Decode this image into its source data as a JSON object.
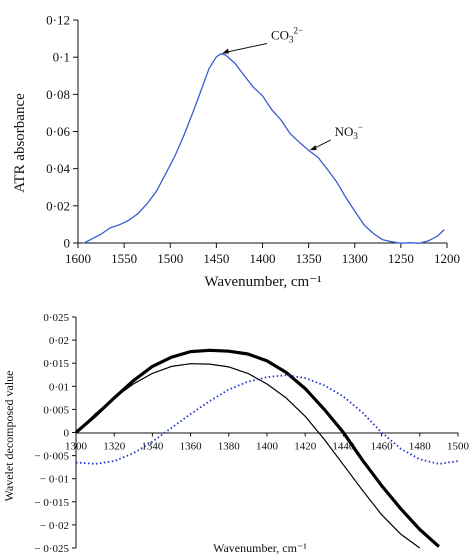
{
  "chart_data": [
    {
      "type": "line",
      "xlabel": "Wavenumber, cm⁻¹",
      "ylabel": "ATR absorbance",
      "xlim": [
        1600,
        1200
      ],
      "ylim": [
        0,
        0.12
      ],
      "x_reversed": true,
      "xticks": [
        1600,
        1550,
        1500,
        1450,
        1400,
        1350,
        1300,
        1250,
        1200
      ],
      "xtick_labels": [
        "1600",
        "1550",
        "1500",
        "1450",
        "1400",
        "1350",
        "1300",
        "1250",
        "1200"
      ],
      "yticks": [
        0,
        0.02,
        0.04,
        0.06,
        0.08,
        0.1,
        0.12
      ],
      "ytick_labels": [
        "0",
        "0·02",
        "0·04",
        "0·06",
        "0·08",
        "0·1",
        "0·12"
      ],
      "series": [
        {
          "color": "#3a5bd0",
          "x": [
            1594,
            1585,
            1575,
            1565,
            1555,
            1545,
            1535,
            1525,
            1515,
            1505,
            1495,
            1485,
            1475,
            1465,
            1458,
            1450,
            1445,
            1440,
            1430,
            1420,
            1410,
            1400,
            1390,
            1380,
            1370,
            1360,
            1350,
            1340,
            1330,
            1320,
            1310,
            1300,
            1290,
            1280,
            1270,
            1260,
            1250,
            1240,
            1230,
            1220,
            1210,
            1203
          ],
          "y": [
            0,
            0.002,
            0.005,
            0.008,
            0.01,
            0.012,
            0.016,
            0.021,
            0.028,
            0.037,
            0.047,
            0.058,
            0.071,
            0.084,
            0.094,
            0.1,
            0.102,
            0.101,
            0.097,
            0.09,
            0.084,
            0.079,
            0.072,
            0.066,
            0.059,
            0.054,
            0.05,
            0.046,
            0.04,
            0.033,
            0.025,
            0.017,
            0.01,
            0.005,
            0.002,
            0.0005,
            0,
            0,
            0,
            0.001,
            0.004,
            0.007
          ]
        }
      ],
      "annotations": [
        {
          "label_main": "CO",
          "label_sub": "3",
          "label_sup": "2−",
          "x": 1445,
          "y": 0.102
        },
        {
          "label_main": "NO",
          "label_sub": "3",
          "label_sup": "−",
          "x": 1350,
          "y": 0.05
        }
      ]
    },
    {
      "type": "line",
      "xlabel": "Wavenumber, cm⁻¹",
      "ylabel": "Wavelet decomposed value",
      "xlim": [
        1300,
        1500
      ],
      "ylim": [
        -0.025,
        0.025
      ],
      "xticks": [
        1300,
        1320,
        1340,
        1360,
        1380,
        1400,
        1420,
        1440,
        1460,
        1480,
        1500
      ],
      "xtick_labels": [
        "1300",
        "1320",
        "1340",
        "1360",
        "1380",
        "1400",
        "1420",
        "1440",
        "1460",
        "1480",
        "1500"
      ],
      "yticks": [
        -0.025,
        -0.02,
        -0.015,
        -0.01,
        -0.005,
        0,
        0.005,
        0.01,
        0.015,
        0.02,
        0.025
      ],
      "ytick_labels": [
        "− 0·025",
        "− 0·02",
        "− 0·015",
        "− 0·01",
        "− 0·005",
        "0",
        "0·005",
        "0·01",
        "0·015",
        "0·02",
        "0·025"
      ],
      "series": [
        {
          "color": "#000000",
          "style": "thick",
          "x": [
            1300,
            1310,
            1320,
            1330,
            1340,
            1350,
            1360,
            1370,
            1380,
            1390,
            1400,
            1410,
            1420,
            1430,
            1440,
            1450,
            1460,
            1470,
            1480,
            1490
          ],
          "y": [
            0,
            0.0036,
            0.0075,
            0.0112,
            0.0143,
            0.0163,
            0.0175,
            0.0178,
            0.0176,
            0.017,
            0.0155,
            0.013,
            0.0095,
            0.005,
            0.0,
            -0.006,
            -0.0115,
            -0.0165,
            -0.021,
            -0.0247
          ]
        },
        {
          "color": "#000000",
          "style": "thin",
          "x": [
            1300,
            1310,
            1320,
            1330,
            1340,
            1350,
            1360,
            1370,
            1380,
            1390,
            1400,
            1410,
            1420,
            1430,
            1440,
            1450,
            1460,
            1470,
            1480
          ],
          "y": [
            0,
            0.004,
            0.0075,
            0.0105,
            0.0128,
            0.0143,
            0.0149,
            0.0148,
            0.0142,
            0.0128,
            0.0105,
            0.0075,
            0.0035,
            -0.0015,
            -0.007,
            -0.0125,
            -0.0178,
            -0.022,
            -0.0255
          ]
        },
        {
          "color": "#2233cc",
          "style": "dotted",
          "x": [
            1300,
            1310,
            1320,
            1330,
            1340,
            1350,
            1360,
            1370,
            1380,
            1390,
            1400,
            1410,
            1420,
            1430,
            1440,
            1450,
            1460,
            1470,
            1480,
            1490,
            1500
          ],
          "y": [
            -0.0065,
            -0.0068,
            -0.0062,
            -0.0045,
            -0.002,
            0.001,
            0.004,
            0.0068,
            0.0093,
            0.011,
            0.012,
            0.0124,
            0.0118,
            0.0102,
            0.0078,
            0.0043,
            0.0,
            -0.0035,
            -0.0058,
            -0.0068,
            -0.0062
          ]
        }
      ]
    }
  ]
}
